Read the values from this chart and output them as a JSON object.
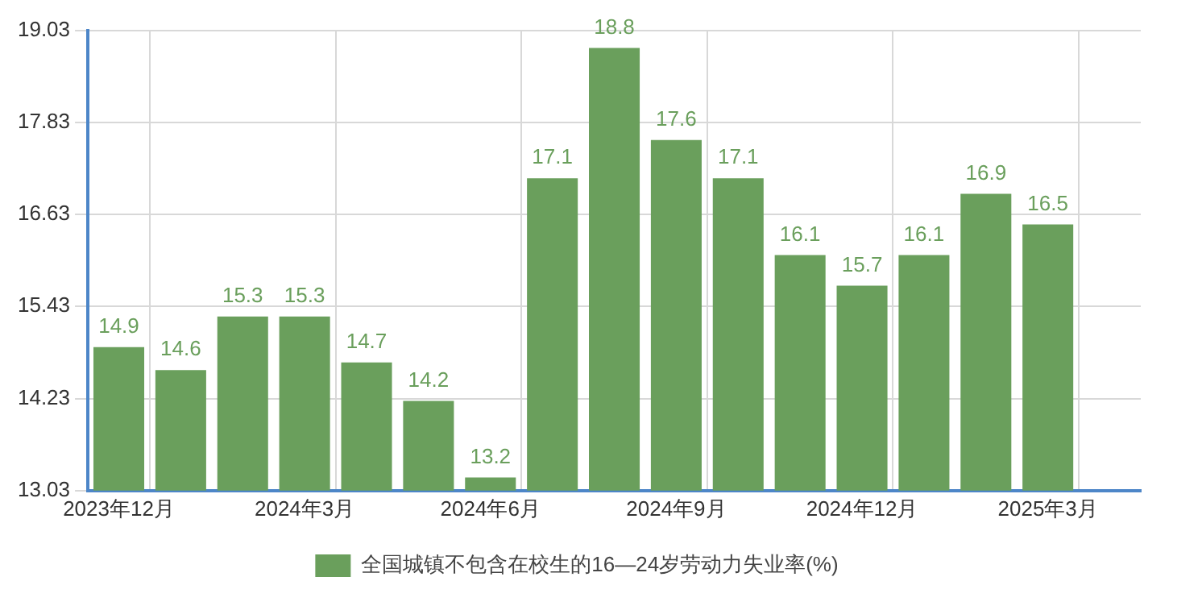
{
  "chart_data": {
    "type": "bar",
    "categories": [
      "2023年12月",
      null,
      null,
      "2024年3月",
      null,
      null,
      "2024年6月",
      null,
      null,
      "2024年9月",
      null,
      null,
      "2024年12月",
      null,
      null,
      "2025年3月",
      null
    ],
    "series": [
      {
        "name": "全国城镇不包含在校生的16—24岁劳动力失业率(%)",
        "color": "#6a9f5c",
        "values": [
          14.9,
          14.6,
          15.3,
          15.3,
          14.7,
          14.2,
          13.2,
          17.1,
          18.8,
          17.6,
          17.1,
          16.1,
          15.7,
          16.1,
          16.9,
          16.5,
          null
        ]
      }
    ],
    "ylim": [
      13.03,
      19.03
    ],
    "yticks": [
      13.03,
      14.23,
      15.43,
      16.63,
      17.83,
      19.03
    ],
    "grid": true,
    "legend": "bottom",
    "data_labels": true
  }
}
